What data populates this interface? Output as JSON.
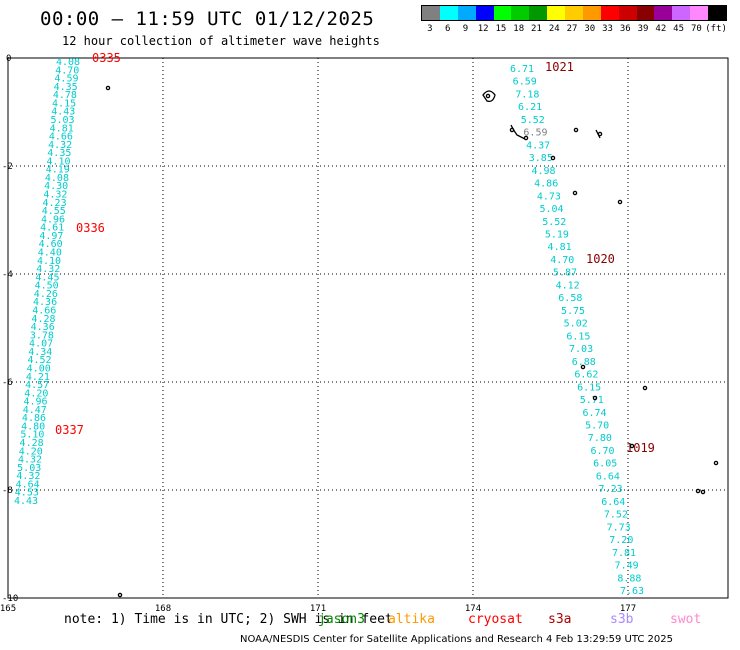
{
  "header": {
    "title": "00:00 – 11:59 UTC 01/12/2025",
    "subtitle": "12 hour collection of altimeter wave heights"
  },
  "legend": {
    "colors": [
      "#808080",
      "#00ffff",
      "#00aaff",
      "#0000ff",
      "#00ff00",
      "#00cc00",
      "#009900",
      "#ffff00",
      "#ffcc00",
      "#ff9900",
      "#ff0000",
      "#cc0000",
      "#880000",
      "#990099",
      "#cc66ff",
      "#ff88ff",
      "#000000"
    ],
    "labels": [
      "3",
      "6",
      "9",
      "12",
      "15",
      "18",
      "21",
      "24",
      "27",
      "30",
      "33",
      "36",
      "39",
      "42",
      "45",
      "70",
      "(ft)"
    ]
  },
  "map": {
    "x_ticks": [
      "165",
      "168",
      "171",
      "174",
      "177"
    ],
    "y_ticks": [
      "0",
      "-2",
      "-4",
      "-6",
      "-8",
      "-10"
    ],
    "track_labels": [
      "0335",
      "0336",
      "0337",
      "1021",
      "1020",
      "1019"
    ],
    "west_track_values": [
      "4.08",
      "4.70",
      "4.59",
      "4.35",
      "4.78",
      "4.15",
      "4.43",
      "5.03",
      "4.81",
      "4.66",
      "4.32",
      "4.35",
      "4.10",
      "4.19",
      "4.08",
      "4.30",
      "4.32",
      "4.23",
      "4.55",
      "4.96",
      "4.61",
      "4.97",
      "4.60",
      "4.40",
      "4.10",
      "4.32",
      "4.45",
      "4.50",
      "4.26",
      "4.36",
      "4.66",
      "4.28",
      "4.36",
      "3.78",
      "4.07",
      "4.34",
      "4.52",
      "4.00",
      "4.21",
      "4.57",
      "4.20",
      "4.96",
      "4.47",
      "4.86",
      "4.80",
      "5.10",
      "4.28",
      "4.20",
      "4.32",
      "5.03",
      "4.32",
      "4.64",
      "4.53",
      "4.43"
    ],
    "east_track_values": [
      "6.71",
      "6.59",
      "7.18",
      "6.21",
      "5.52",
      "6.59",
      "4.37",
      "3.85",
      "4.98",
      "4.86",
      "4.73",
      "5.04",
      "5.52",
      "5.19",
      "4.81",
      "4.70",
      "5.87",
      "4.12",
      "6.58",
      "5.75",
      "5.02",
      "6.15",
      "7.03",
      "6.88",
      "6.62",
      "6.15",
      "5.71",
      "6.74",
      "5.70",
      "7.80",
      "6.70",
      "6.05",
      "6.64",
      "7.23",
      "6.64",
      "7.52",
      "7.73",
      "7.20",
      "7.81",
      "7.49",
      "8.88",
      "7.63"
    ]
  },
  "footer": {
    "note": "note: 1) Time is in UTC; 2) SWH is in feet",
    "credit": "NOAA/NESDIS Center for Satellite Applications and Research    4 Feb 13:29:59 UTC 2025",
    "satellites": [
      {
        "name": "jason3",
        "color": "#008800"
      },
      {
        "name": "altika",
        "color": "#ff9900"
      },
      {
        "name": "cryosat",
        "color": "#ff0000"
      },
      {
        "name": "s3a",
        "color": "#aa0000"
      },
      {
        "name": "s3b",
        "color": "#aa88ff"
      },
      {
        "name": "swot",
        "color": "#ff88cc"
      }
    ]
  }
}
